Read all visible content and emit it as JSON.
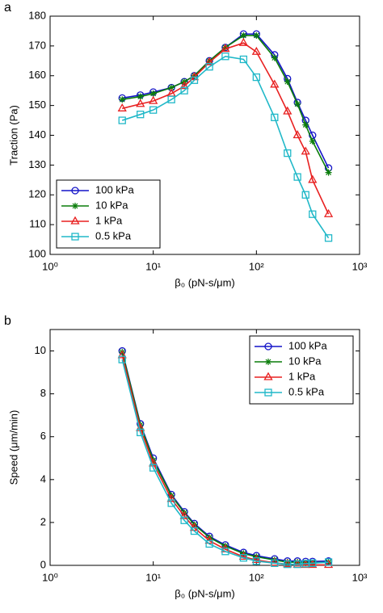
{
  "chart_data": [
    {
      "type": "line",
      "panel_label": "a",
      "xlabel": "β₀ (pN-s/μm)",
      "ylabel": "Traction (Pa)",
      "x": [
        5,
        7.5,
        10,
        15,
        20,
        25,
        35,
        50,
        75,
        100,
        150,
        200,
        250,
        300,
        350,
        500
      ],
      "xlim": [
        1,
        1000
      ],
      "xscale": "log",
      "xticks": [
        {
          "value": 1,
          "label": "10⁰"
        },
        {
          "value": 10,
          "label": "10¹"
        },
        {
          "value": 100,
          "label": "10²"
        },
        {
          "value": 1000,
          "label": "10³"
        }
      ],
      "ylim": [
        100,
        180
      ],
      "yticks": [
        100,
        110,
        120,
        130,
        140,
        150,
        160,
        170,
        180
      ],
      "legend": "lower left",
      "series": [
        {
          "name": "100 kPa",
          "color": "#1414c8",
          "marker": "circle",
          "values": [
            152.5,
            153.5,
            154.5,
            156,
            158,
            160,
            165,
            169.5,
            174,
            174,
            167,
            159,
            151,
            145,
            140,
            129
          ]
        },
        {
          "name": "10 kPa",
          "color": "#0a7d0a",
          "marker": "asterisk",
          "values": [
            152,
            153,
            154,
            156,
            158,
            160,
            165,
            169.5,
            173.5,
            173.5,
            166,
            158,
            150.5,
            143.5,
            138,
            127.5
          ]
        },
        {
          "name": "1 kPa",
          "color": "#e82020",
          "marker": "triangle",
          "values": [
            149,
            150.5,
            151.5,
            154,
            156.5,
            159.5,
            164.5,
            169,
            171,
            168,
            157,
            148,
            140,
            134.5,
            125,
            113.5
          ]
        },
        {
          "name": "0.5 kPa",
          "color": "#20b8c8",
          "marker": "square",
          "values": [
            145,
            147,
            148.5,
            152,
            155,
            158.5,
            163,
            166.5,
            165.5,
            159.5,
            146,
            134,
            126,
            120,
            113.5,
            105.5
          ]
        }
      ]
    },
    {
      "type": "line",
      "panel_label": "b",
      "xlabel": "β₀ (pN-s/μm)",
      "ylabel": "Speed (μm/min)",
      "x": [
        5,
        7.5,
        10,
        15,
        20,
        25,
        35,
        50,
        75,
        100,
        150,
        200,
        250,
        300,
        350,
        500
      ],
      "xlim": [
        1,
        1000
      ],
      "xscale": "log",
      "xticks": [
        {
          "value": 1,
          "label": "10⁰"
        },
        {
          "value": 10,
          "label": "10¹"
        },
        {
          "value": 100,
          "label": "10²"
        },
        {
          "value": 1000,
          "label": "10³"
        }
      ],
      "ylim": [
        0,
        11
      ],
      "yticks": [
        0,
        2,
        4,
        6,
        8,
        10
      ],
      "legend": "upper right",
      "series": [
        {
          "name": "100 kPa",
          "color": "#1414c8",
          "marker": "circle",
          "values": [
            10,
            6.6,
            5,
            3.3,
            2.5,
            1.95,
            1.35,
            0.95,
            0.6,
            0.45,
            0.3,
            0.2,
            0.2,
            0.18,
            0.18,
            0.2
          ]
        },
        {
          "name": "10 kPa",
          "color": "#0a7d0a",
          "marker": "asterisk",
          "values": [
            9.95,
            6.55,
            4.9,
            3.25,
            2.45,
            1.9,
            1.3,
            0.9,
            0.55,
            0.4,
            0.25,
            0.15,
            0.15,
            0.12,
            0.12,
            0.15
          ]
        },
        {
          "name": "1 kPa",
          "color": "#e82020",
          "marker": "triangle",
          "values": [
            9.8,
            6.4,
            4.75,
            3.1,
            2.3,
            1.75,
            1.15,
            0.75,
            0.4,
            0.25,
            0.12,
            0.05,
            0.03,
            0.02,
            0.02,
            0.02
          ]
        },
        {
          "name": "0.5 kPa",
          "color": "#20b8c8",
          "marker": "square",
          "values": [
            9.6,
            6.2,
            4.55,
            2.9,
            2.1,
            1.6,
            1.0,
            0.65,
            0.35,
            0.2,
            0.1,
            0.05,
            0.05,
            0.08,
            0.1,
            0.15
          ]
        }
      ]
    }
  ]
}
